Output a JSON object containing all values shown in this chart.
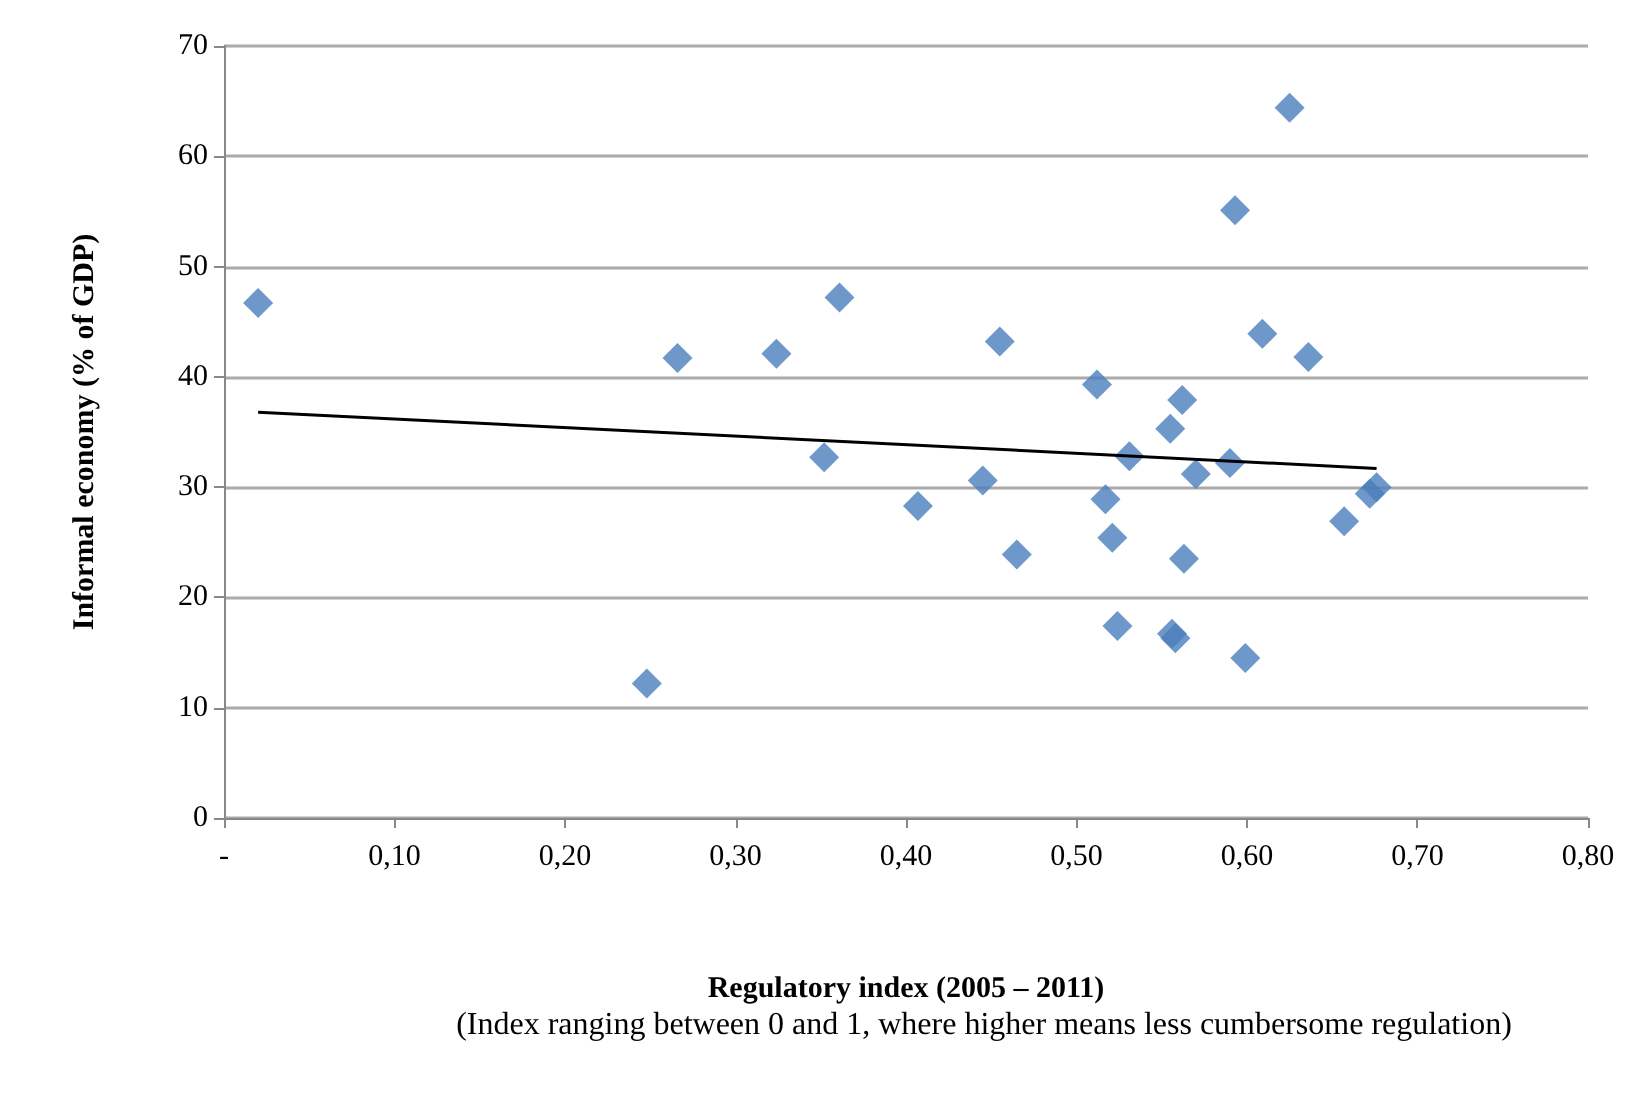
{
  "chart_data": {
    "type": "scatter",
    "xlabel": "Regulatory index (2005 – 2011)",
    "ylabel": "Informal economy (% of GDP)",
    "annotations": [
      "(Index ranging between 0 and 1, where higher means less cumbersome regulation)"
    ],
    "series": [
      {
        "color": "#4a7ebb",
        "marker": "diamond",
        "x": [
          0.02,
          0.248,
          0.266,
          0.324,
          0.352,
          0.361,
          0.407,
          0.445,
          0.455,
          0.465,
          0.512,
          0.517,
          0.521,
          0.524,
          0.531,
          0.555,
          0.556,
          0.558,
          0.562,
          0.563,
          0.57,
          0.59,
          0.593,
          0.599,
          0.609,
          0.625,
          0.636,
          0.657,
          0.672,
          0.676
        ],
        "values": [
          46.7,
          12.2,
          41.7,
          42.1,
          32.7,
          47.2,
          28.3,
          30.6,
          43.2,
          23.9,
          39.3,
          28.9,
          25.4,
          17.4,
          32.8,
          35.3,
          16.7,
          16.3,
          37.9,
          23.5,
          31.2,
          32.2,
          55.1,
          14.5,
          43.9,
          64.4,
          41.8,
          26.9,
          29.4,
          30.0
        ]
      },
      {
        "type": "line",
        "color": "#000000",
        "marker": "none",
        "x": [
          0.02,
          0.676
        ],
        "values": [
          36.8,
          31.7
        ]
      }
    ],
    "xlim": [
      0,
      0.8
    ],
    "xticks": [
      {
        "value": 0,
        "label": "-"
      },
      {
        "value": 0.1,
        "label": "0,10"
      },
      {
        "value": 0.2,
        "label": "0,20"
      },
      {
        "value": 0.3,
        "label": "0,30"
      },
      {
        "value": 0.4,
        "label": "0,40"
      },
      {
        "value": 0.5,
        "label": "0,50"
      },
      {
        "value": 0.6,
        "label": "0,60"
      },
      {
        "value": 0.7,
        "label": "0,70"
      },
      {
        "value": 0.8,
        "label": "0,80"
      }
    ],
    "ylim": [
      0,
      70
    ],
    "yticks": [
      0,
      10,
      20,
      30,
      40,
      50,
      60,
      70
    ],
    "grid": "y"
  }
}
